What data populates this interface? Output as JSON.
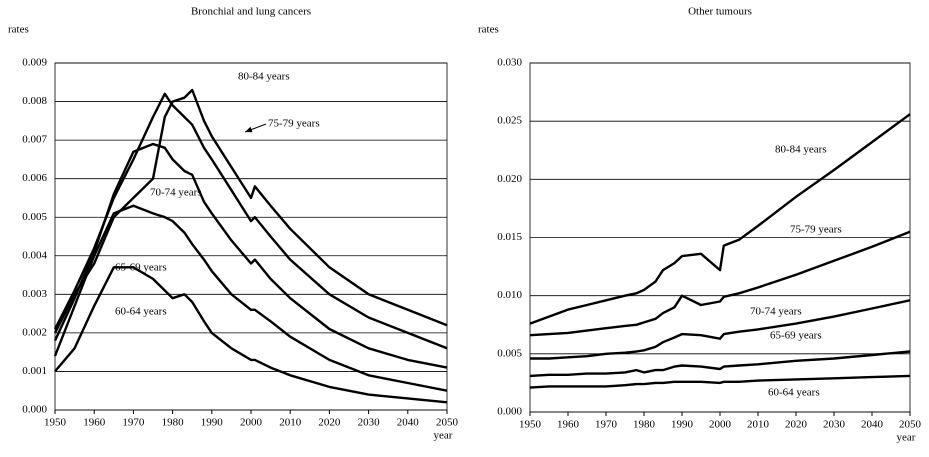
{
  "chart_data": [
    {
      "type": "line",
      "title": "Bronchial and lung cancers",
      "ylabel": "rates",
      "xlabel": "year",
      "grid": true,
      "x": [
        1950,
        1955,
        1960,
        1965,
        1970,
        1975,
        1978,
        1980,
        1983,
        1985,
        1988,
        1990,
        1995,
        2000,
        2001,
        2005,
        2010,
        2020,
        2030,
        2040,
        2050
      ],
      "xlim": [
        1950,
        2050
      ],
      "xticks": [
        1950,
        1960,
        1970,
        1980,
        1990,
        2000,
        2010,
        2020,
        2030,
        2040,
        2050
      ],
      "ylim": [
        0,
        0.009
      ],
      "yticks": [
        {
          "value": 0,
          "label": "0.000"
        },
        {
          "value": 0.001,
          "label": "0.001"
        },
        {
          "value": 0.002,
          "label": "0.002"
        },
        {
          "value": 0.003,
          "label": "0.003"
        },
        {
          "value": 0.004,
          "label": "0.004"
        },
        {
          "value": 0.005,
          "label": "0.005"
        },
        {
          "value": 0.006,
          "label": "0.006"
        },
        {
          "value": 0.007,
          "label": "0.007"
        },
        {
          "value": 0.008,
          "label": "0.008"
        },
        {
          "value": 0.009,
          "label": "0.009"
        }
      ],
      "series": [
        {
          "name": "80-84 years",
          "color": "#000000",
          "values": [
            0.002,
            0.003,
            0.0038,
            0.005,
            0.0055,
            0.006,
            0.0076,
            0.008,
            0.0081,
            0.0083,
            0.0075,
            0.0071,
            0.0063,
            0.0055,
            0.0058,
            0.0053,
            0.0047,
            0.0037,
            0.003,
            0.0026,
            0.0022
          ]
        },
        {
          "name": "75-79 years",
          "color": "#000000",
          "values": [
            0.0021,
            0.0031,
            0.0042,
            0.0055,
            0.0065,
            0.0076,
            0.0082,
            0.0079,
            0.0076,
            0.0074,
            0.0068,
            0.0065,
            0.0057,
            0.0049,
            0.005,
            0.0045,
            0.0039,
            0.003,
            0.0024,
            0.002,
            0.0016
          ]
        },
        {
          "name": "70-74 years",
          "color": "#000000",
          "values": [
            0.0018,
            0.0029,
            0.0041,
            0.0056,
            0.0067,
            0.0069,
            0.0068,
            0.0065,
            0.0062,
            0.0061,
            0.0054,
            0.0051,
            0.0044,
            0.0038,
            0.0039,
            0.0034,
            0.0029,
            0.0021,
            0.0016,
            0.0013,
            0.0011
          ]
        },
        {
          "name": "65-69 years",
          "color": "#000000",
          "values": [
            0.0014,
            0.0027,
            0.004,
            0.0051,
            0.0053,
            0.0051,
            0.005,
            0.0049,
            0.0046,
            0.0043,
            0.0039,
            0.0036,
            0.003,
            0.0026,
            0.0026,
            0.0023,
            0.0019,
            0.0013,
            0.0009,
            0.0007,
            0.0005
          ]
        },
        {
          "name": "60-64 years",
          "color": "#000000",
          "values": [
            0.001,
            0.0016,
            0.0027,
            0.0037,
            0.0037,
            0.0034,
            0.0031,
            0.0029,
            0.003,
            0.0028,
            0.0023,
            0.002,
            0.0016,
            0.0013,
            0.0013,
            0.0011,
            0.0009,
            0.0006,
            0.0004,
            0.0003,
            0.0002
          ]
        }
      ]
    },
    {
      "type": "line",
      "title": "Other tumours",
      "ylabel": "rates",
      "xlabel": "year",
      "grid": true,
      "x": [
        1950,
        1955,
        1960,
        1965,
        1970,
        1975,
        1978,
        1980,
        1983,
        1985,
        1988,
        1990,
        1995,
        2000,
        2001,
        2005,
        2010,
        2020,
        2030,
        2040,
        2050
      ],
      "xlim": [
        1950,
        2050
      ],
      "xticks": [
        1950,
        1960,
        1970,
        1980,
        1990,
        2000,
        2010,
        2020,
        2030,
        2040,
        2050
      ],
      "ylim": [
        0,
        0.03
      ],
      "yticks": [
        {
          "value": 0,
          "label": "0.000"
        },
        {
          "value": 0.005,
          "label": "0.005"
        },
        {
          "value": 0.01,
          "label": "0.010"
        },
        {
          "value": 0.015,
          "label": "0.015"
        },
        {
          "value": 0.02,
          "label": "0.020"
        },
        {
          "value": 0.025,
          "label": "0.025"
        },
        {
          "value": 0.03,
          "label": "0.030"
        }
      ],
      "series": [
        {
          "name": "80-84 years",
          "color": "#000000",
          "values": [
            0.0076,
            0.0082,
            0.0088,
            0.0092,
            0.0096,
            0.01,
            0.0102,
            0.0105,
            0.0112,
            0.0122,
            0.0128,
            0.0134,
            0.0136,
            0.0122,
            0.0143,
            0.0148,
            0.016,
            0.0185,
            0.0208,
            0.0232,
            0.0256
          ]
        },
        {
          "name": "75-79 years",
          "color": "#000000",
          "values": [
            0.0066,
            0.0067,
            0.0068,
            0.007,
            0.0072,
            0.0074,
            0.0075,
            0.0077,
            0.008,
            0.0085,
            0.009,
            0.01,
            0.0092,
            0.0095,
            0.0099,
            0.0102,
            0.0107,
            0.0118,
            0.013,
            0.0142,
            0.0155
          ]
        },
        {
          "name": "70-74 years",
          "color": "#000000",
          "values": [
            0.0046,
            0.0046,
            0.0047,
            0.0048,
            0.005,
            0.0051,
            0.0052,
            0.0053,
            0.0056,
            0.006,
            0.0064,
            0.0067,
            0.0066,
            0.0063,
            0.0067,
            0.0069,
            0.0071,
            0.0076,
            0.0082,
            0.0089,
            0.0096
          ]
        },
        {
          "name": "65-69 years",
          "color": "#000000",
          "values": [
            0.0031,
            0.0032,
            0.0032,
            0.0033,
            0.0033,
            0.0034,
            0.0036,
            0.0034,
            0.0036,
            0.0036,
            0.0039,
            0.004,
            0.0039,
            0.0037,
            0.0039,
            0.004,
            0.0041,
            0.0044,
            0.0046,
            0.0049,
            0.0052
          ]
        },
        {
          "name": "60-64 years",
          "color": "#000000",
          "values": [
            0.0021,
            0.0022,
            0.0022,
            0.0022,
            0.0022,
            0.0023,
            0.0024,
            0.0024,
            0.0025,
            0.0025,
            0.0026,
            0.0026,
            0.0026,
            0.0025,
            0.0026,
            0.0026,
            0.0027,
            0.0028,
            0.0029,
            0.003,
            0.0031
          ]
        }
      ]
    }
  ]
}
